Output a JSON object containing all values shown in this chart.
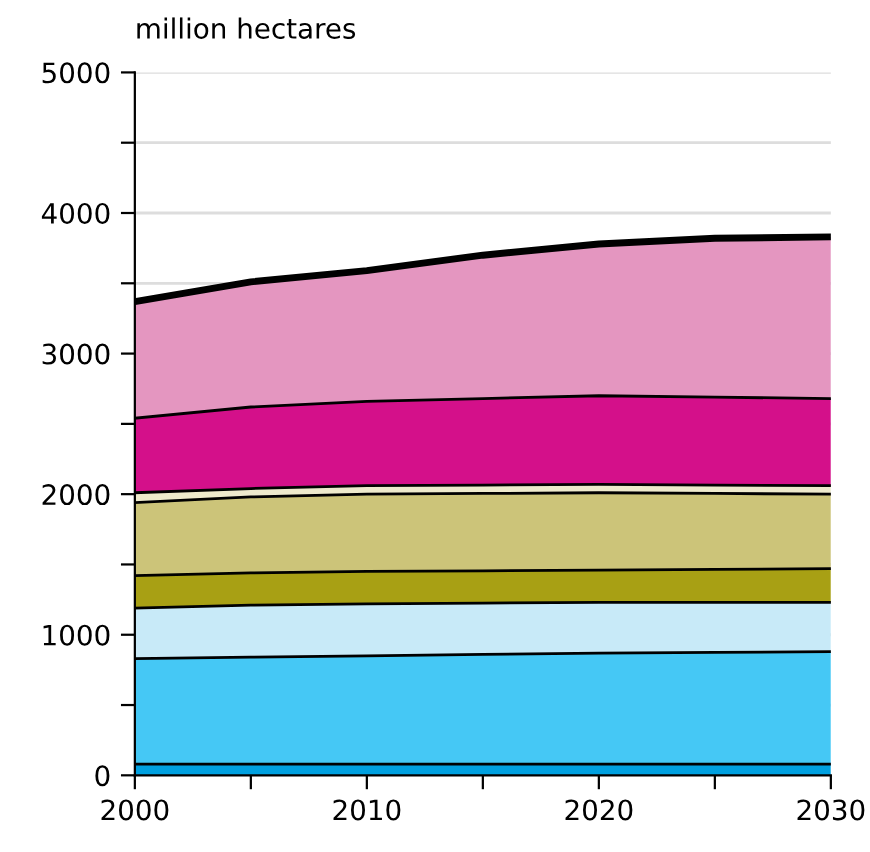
{
  "chart_data": {
    "type": "area",
    "stacked": true,
    "ylabel": "million hectares",
    "x": [
      2000,
      2005,
      2010,
      2015,
      2020,
      2025,
      2030
    ],
    "series": [
      {
        "color": "#00a0e0",
        "values": [
          80,
          80,
          80,
          80,
          80,
          80,
          80
        ]
      },
      {
        "color": "#45c8f5",
        "values": [
          750,
          760,
          770,
          780,
          790,
          795,
          800
        ]
      },
      {
        "color": "#c8eaf8",
        "values": [
          360,
          370,
          370,
          365,
          360,
          355,
          350
        ]
      },
      {
        "color": "#a8a014",
        "values": [
          230,
          230,
          230,
          230,
          230,
          235,
          240
        ]
      },
      {
        "color": "#ccc479",
        "values": [
          520,
          540,
          550,
          550,
          550,
          540,
          530
        ]
      },
      {
        "color": "#eeeacc",
        "values": [
          70,
          60,
          60,
          60,
          60,
          60,
          60
        ]
      },
      {
        "color": "#d4108a",
        "values": [
          530,
          580,
          600,
          615,
          630,
          625,
          620
        ]
      },
      {
        "color": "#e496c0",
        "values": [
          830,
          890,
          930,
          1020,
          1080,
          1130,
          1150
        ]
      }
    ],
    "xlim": [
      2000,
      2030
    ],
    "xticks": [
      2000,
      {
        "value": 2005,
        "label": null
      },
      2010,
      {
        "value": 2015,
        "label": null
      },
      2020,
      {
        "value": 2025,
        "label": null
      },
      2030
    ],
    "ylim": [
      0,
      5000
    ],
    "yticks": [
      0,
      {
        "value": 500,
        "label": null
      },
      1000,
      {
        "value": 1500,
        "label": null
      },
      2000,
      {
        "value": 2500,
        "label": null
      },
      3000,
      {
        "value": 3500,
        "label": null
      },
      4000,
      {
        "value": 4500,
        "label": null
      },
      5000
    ],
    "grid": "y",
    "legend": false
  }
}
